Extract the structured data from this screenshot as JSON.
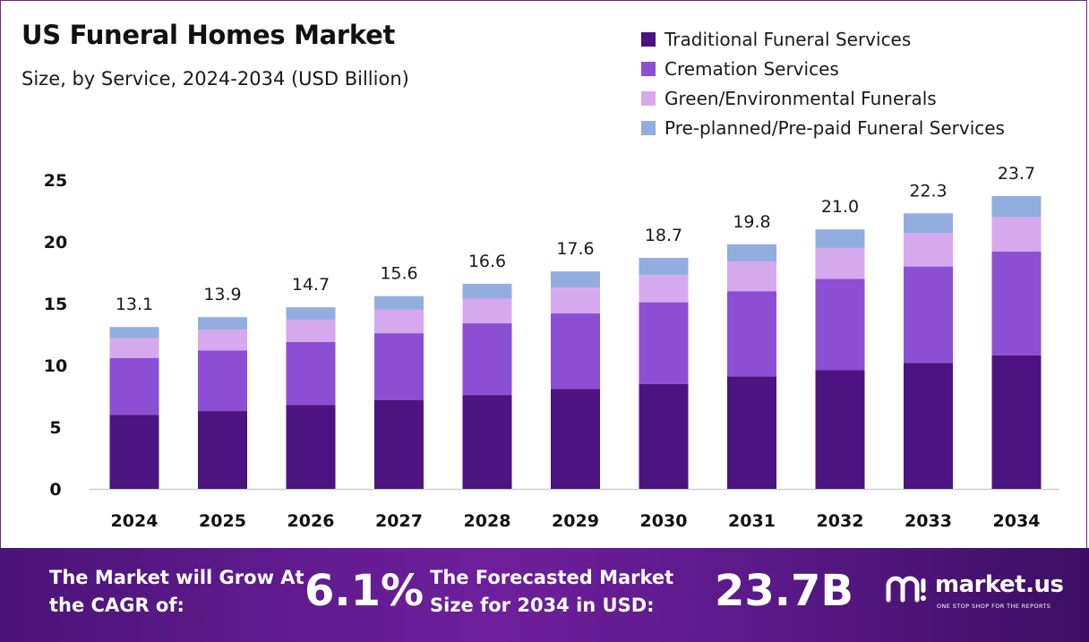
{
  "chart_data": {
    "type": "bar",
    "stacked": true,
    "title": "US Funeral Homes Market",
    "subtitle": "Size, by Service, 2024-2034 (USD Billion)",
    "categories": [
      "2024",
      "2025",
      "2026",
      "2027",
      "2028",
      "2029",
      "2030",
      "2031",
      "2032",
      "2033",
      "2034"
    ],
    "totals": [
      13.1,
      13.9,
      14.7,
      15.6,
      16.6,
      17.6,
      18.7,
      19.8,
      21.0,
      22.3,
      23.7
    ],
    "total_labels": [
      "13.1",
      "13.9",
      "14.7",
      "15.6",
      "16.6",
      "17.6",
      "18.7",
      "19.8",
      "21.0",
      "22.3",
      "23.7"
    ],
    "series": [
      {
        "name": "Traditional Funeral Services",
        "color": "#4b1480",
        "values": [
          6.0,
          6.3,
          6.8,
          7.2,
          7.6,
          8.1,
          8.5,
          9.1,
          9.6,
          10.2,
          10.8
        ]
      },
      {
        "name": "Cremation Services",
        "color": "#8c4fd3",
        "values": [
          4.6,
          4.9,
          5.1,
          5.4,
          5.8,
          6.1,
          6.6,
          6.9,
          7.4,
          7.8,
          8.4
        ]
      },
      {
        "name": "Green/Environmental Funerals",
        "color": "#d6a9ef",
        "values": [
          1.6,
          1.7,
          1.8,
          1.9,
          2.0,
          2.1,
          2.2,
          2.4,
          2.5,
          2.7,
          2.8
        ]
      },
      {
        "name": "Pre-planned/Pre-paid Funeral Services",
        "color": "#92aee0",
        "values": [
          0.9,
          1.0,
          1.0,
          1.1,
          1.2,
          1.3,
          1.4,
          1.4,
          1.5,
          1.6,
          1.7
        ]
      }
    ],
    "yticks": [
      "0",
      "5",
      "10",
      "15",
      "20",
      "25"
    ],
    "ylim": [
      0,
      25
    ],
    "xlabel": "",
    "ylabel": "",
    "grid": false,
    "legend_position": "top-right"
  },
  "banner": {
    "cagr_label": "The Market will Grow At the CAGR of:",
    "cagr_value": "6.1%",
    "size_label": "The Forecasted Market Size for 2034 in USD:",
    "size_value": "23.7B"
  },
  "brand": {
    "name": "market.us",
    "tagline": "ONE STOP SHOP FOR THE REPORTS"
  },
  "colors": {
    "banner_start": "#4a1478",
    "banner_end": "#3c0f63",
    "frame": "#6b2a86"
  }
}
